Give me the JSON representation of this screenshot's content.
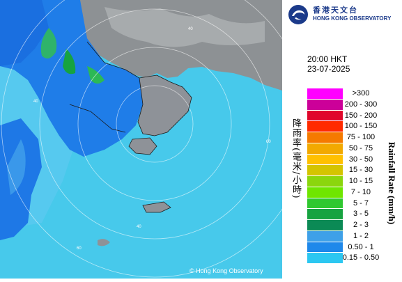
{
  "org": {
    "name_zh": "香港天文台",
    "name_en": "HONG KONG OBSERVATORY",
    "logo_icon": "hko-swirl-icon"
  },
  "time": {
    "time": "20:00 HKT",
    "date": "23-07-2025"
  },
  "legend": {
    "title_zh": "降雨率(毫米/小時)",
    "title_en": "Rainfall Rate (mm/h)",
    "items": [
      {
        "label": ">300",
        "color": "#ff00ff"
      },
      {
        "label": "200 - 300",
        "color": "#cc0099"
      },
      {
        "label": "150 - 200",
        "color": "#e0062b"
      },
      {
        "label": "100 - 150",
        "color": "#ff2a00"
      },
      {
        "label": "75 - 100",
        "color": "#f57a00"
      },
      {
        "label": "50 - 75",
        "color": "#f2a900"
      },
      {
        "label": "30 - 50",
        "color": "#ffc000"
      },
      {
        "label": "15 - 30",
        "color": "#d4c400"
      },
      {
        "label": "10 - 15",
        "color": "#8bd60d"
      },
      {
        "label": "7 - 10",
        "color": "#6fe600"
      },
      {
        "label": "5 - 7",
        "color": "#2fc82f"
      },
      {
        "label": "3 - 5",
        "color": "#16a340"
      },
      {
        "label": "2 - 3",
        "color": "#0b8a55"
      },
      {
        "label": "1 - 2",
        "color": "#3ea0e8"
      },
      {
        "label": "0.50 - 1",
        "color": "#1e88ea"
      },
      {
        "label": "0.15 - 0.50",
        "color": "#2cc7f1"
      }
    ]
  },
  "map": {
    "range_labels": [
      "40",
      "60",
      "40",
      "60",
      "40"
    ],
    "copyright": "© Hong Kong Observatory"
  }
}
